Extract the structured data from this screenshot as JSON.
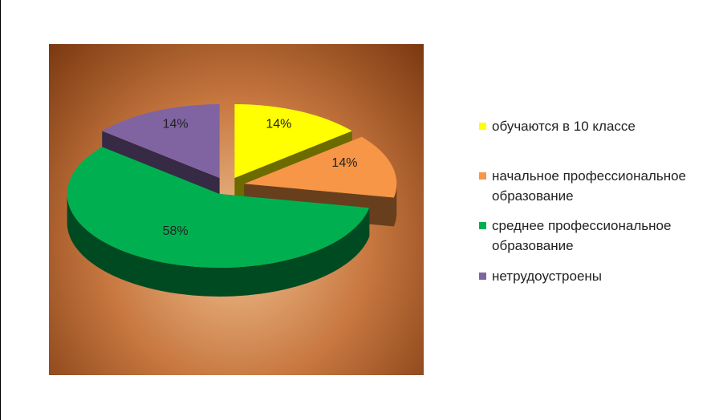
{
  "chart_data": {
    "type": "pie",
    "categories": [
      "обучаются в 10 классе",
      "начальное профессиональное образование",
      "среднее профессиональное образование",
      "нетрудоустроены"
    ],
    "values": [
      14,
      14,
      58,
      14
    ],
    "value_labels": [
      "14%",
      "14%",
      "58%",
      "14%"
    ],
    "colors": [
      "#ffff00",
      "#f79646",
      "#00b050",
      "#8064a2"
    ],
    "legend": "right"
  }
}
